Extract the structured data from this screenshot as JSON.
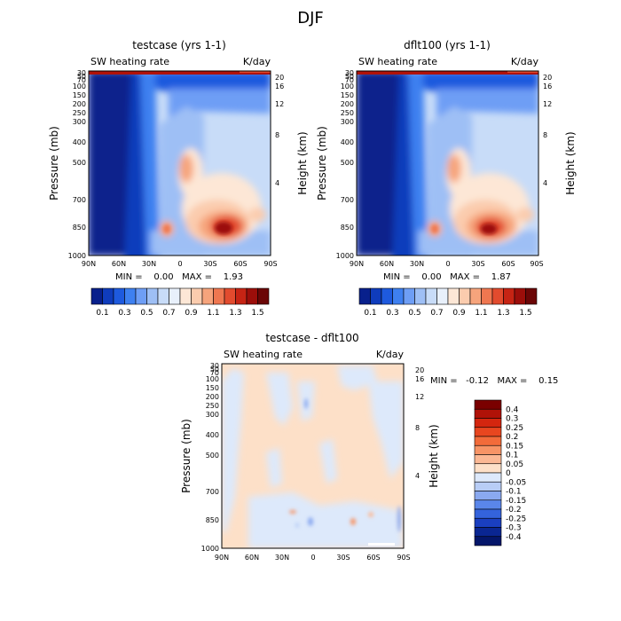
{
  "figure": {
    "title": "DJF"
  },
  "chart_data": [
    {
      "type": "heatmap",
      "title": "testcase (yrs 1-1)",
      "subtitle_left": "SW heating rate",
      "subtitle_right": "K/day",
      "xlabel": "",
      "ylabel": "Pressure (mb)",
      "ylabel_right": "Height (km)",
      "x_ticks": [
        "90N",
        "60N",
        "30N",
        "0",
        "30S",
        "60S",
        "90S"
      ],
      "y_ticks": [
        "30",
        "50",
        "70",
        "100",
        "150",
        "200",
        "250",
        "300",
        "400",
        "500",
        "700",
        "850",
        "1000"
      ],
      "y_ticks_right": [
        "20",
        "16",
        "12",
        "8",
        "4"
      ],
      "min_max": "MIN =    0.00   MAX =    1.93",
      "colorbar_labels": [
        "0.1",
        "0.3",
        "0.5",
        "0.7",
        "0.9",
        "1.1",
        "1.3",
        "1.5"
      ],
      "colorbar_colors": [
        "#08208c",
        "#0f3cbc",
        "#1e5ade",
        "#3e80f0",
        "#6e9ef5",
        "#9ebff5",
        "#c8dcf8",
        "#e8f0fb",
        "#fde7d6",
        "#fbccae",
        "#f6a47c",
        "#ef7750",
        "#e24b2e",
        "#c62414",
        "#9c0e0a",
        "#6b0606"
      ],
      "max_value": 1.93,
      "min_value": 0.0
    },
    {
      "type": "heatmap",
      "title": "dflt100 (yrs 1-1)",
      "subtitle_left": "SW heating rate",
      "subtitle_right": "K/day",
      "xlabel": "",
      "ylabel": "Pressure (mb)",
      "ylabel_right": "Height (km)",
      "x_ticks": [
        "90N",
        "60N",
        "30N",
        "0",
        "30S",
        "60S",
        "90S"
      ],
      "y_ticks": [
        "30",
        "50",
        "70",
        "100",
        "150",
        "200",
        "250",
        "300",
        "400",
        "500",
        "700",
        "850",
        "1000"
      ],
      "y_ticks_right": [
        "20",
        "16",
        "12",
        "8",
        "4"
      ],
      "min_max": "MIN =    0.00   MAX =    1.87",
      "colorbar_labels": [
        "0.1",
        "0.3",
        "0.5",
        "0.7",
        "0.9",
        "1.1",
        "1.3",
        "1.5"
      ],
      "colorbar_colors": [
        "#08208c",
        "#0f3cbc",
        "#1e5ade",
        "#3e80f0",
        "#6e9ef5",
        "#9ebff5",
        "#c8dcf8",
        "#e8f0fb",
        "#fde7d6",
        "#fbccae",
        "#f6a47c",
        "#ef7750",
        "#e24b2e",
        "#c62414",
        "#9c0e0a",
        "#6b0606"
      ],
      "max_value": 1.87,
      "min_value": 0.0
    },
    {
      "type": "heatmap",
      "title": "testcase - dflt100",
      "subtitle_left": "SW heating rate",
      "subtitle_right": "K/day",
      "xlabel": "",
      "ylabel": "Pressure (mb)",
      "ylabel_right": "Height (km)",
      "x_ticks": [
        "90N",
        "60N",
        "30N",
        "0",
        "30S",
        "60S",
        "90S"
      ],
      "y_ticks": [
        "30",
        "50",
        "70",
        "100",
        "150",
        "200",
        "250",
        "300",
        "400",
        "500",
        "700",
        "850",
        "1000"
      ],
      "y_ticks_right": [
        "20",
        "16",
        "12",
        "8",
        "4"
      ],
      "min_max": "MIN =   -0.12   MAX =    0.15",
      "colorbar_labels": [
        "0.4",
        "0.3",
        "0.25",
        "0.2",
        "0.15",
        "0.1",
        "0.05",
        "0",
        "-0.05",
        "-0.1",
        "-0.15",
        "-0.2",
        "-0.25",
        "-0.3",
        "-0.4"
      ],
      "colorbar_colors": [
        "#7a0000",
        "#b01208",
        "#d4260f",
        "#e8461f",
        "#f26b3a",
        "#f79466",
        "#fbb894",
        "#fde0c8",
        "#dde9fb",
        "#b8cdf6",
        "#8aa9f0",
        "#5a86ea",
        "#3463dc",
        "#1a3fc0",
        "#0a2692",
        "#04166a"
      ],
      "max_value": 0.15,
      "min_value": -0.12
    }
  ]
}
